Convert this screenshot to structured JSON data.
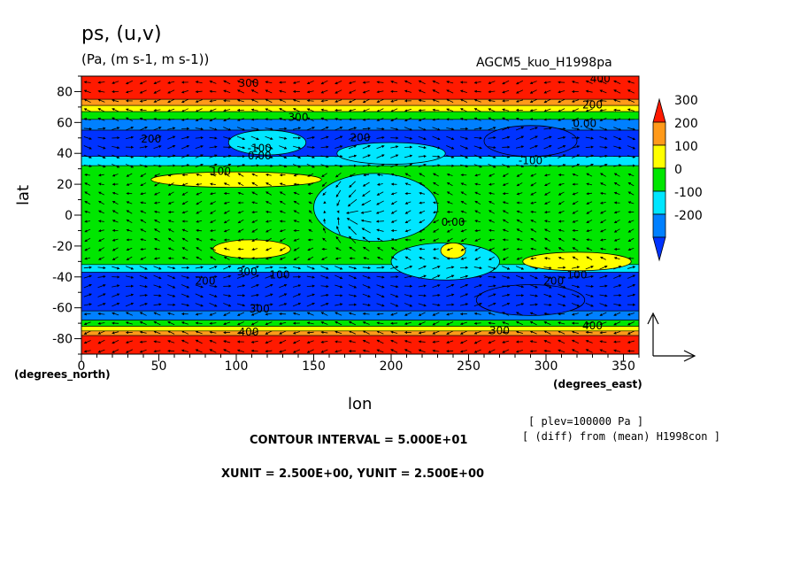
{
  "header": {
    "title": "ps, (u,v)",
    "units": "(Pa, (m s-1, m s-1))",
    "experiment": "AGCM5_kuo_H1998pa"
  },
  "axes": {
    "ylabel": "lat",
    "xlabel": "lon",
    "lat_unit": "(degrees_north)",
    "lon_unit": "(degrees_east)"
  },
  "notes": {
    "plev": "[ plev=100000 Pa ]",
    "diff": "[ (diff) from (mean) H1998con ]",
    "contour_interval": "CONTOUR INTERVAL = 5.000E+01",
    "vector_units": "XUNIT = 2.500E+00, YUNIT = 2.500E+00"
  },
  "chart_data": {
    "type": "heatmap",
    "xlim": [
      0,
      360
    ],
    "ylim": [
      -90,
      90
    ],
    "x_ticks": [
      0,
      50,
      100,
      150,
      200,
      250,
      300,
      350
    ],
    "y_ticks": [
      80,
      60,
      40,
      20,
      0,
      -20,
      -40,
      -60,
      -80
    ],
    "colorbar": {
      "levels": [
        300,
        200,
        100,
        0,
        -100,
        -200
      ],
      "colors": [
        "#ff1a00",
        "#ff9a1a",
        "#ffff00",
        "#00e600",
        "#00e6ff",
        "#0080ff",
        "#0033ff"
      ]
    },
    "latitude_bands": [
      {
        "lat_from": 90,
        "lat_to": 75,
        "value": 350
      },
      {
        "lat_from": 75,
        "lat_to": 71,
        "value": 250
      },
      {
        "lat_from": 71,
        "lat_to": 67,
        "value": 150
      },
      {
        "lat_from": 67,
        "lat_to": 62,
        "value": 50
      },
      {
        "lat_from": 62,
        "lat_to": 55,
        "value": -150
      },
      {
        "lat_from": 55,
        "lat_to": 38,
        "value": -250
      },
      {
        "lat_from": 38,
        "lat_to": 32,
        "value": -50
      },
      {
        "lat_from": 32,
        "lat_to": -32,
        "value": 50
      },
      {
        "lat_from": -32,
        "lat_to": -37,
        "value": -50
      },
      {
        "lat_from": -37,
        "lat_to": -62,
        "value": -250
      },
      {
        "lat_from": -62,
        "lat_to": -68,
        "value": -150
      },
      {
        "lat_from": -68,
        "lat_to": -72,
        "value": 50
      },
      {
        "lat_from": -72,
        "lat_to": -75,
        "value": 150
      },
      {
        "lat_from": -75,
        "lat_to": -78,
        "value": 250
      },
      {
        "lat_from": -78,
        "lat_to": -90,
        "value": 350
      }
    ],
    "anomaly_patches": [
      {
        "lon": 200,
        "lat": 40,
        "rlon": 35,
        "rlat": 7,
        "value": -50
      },
      {
        "lon": 190,
        "lat": 5,
        "rlon": 40,
        "rlat": 22,
        "value": -50
      },
      {
        "lon": 235,
        "lat": -30,
        "rlon": 35,
        "rlat": 12,
        "value": -50
      },
      {
        "lon": 120,
        "lat": 47,
        "rlon": 25,
        "rlat": 8,
        "value": -50
      },
      {
        "lon": 100,
        "lat": 23,
        "rlon": 55,
        "rlat": 5,
        "value": 150
      },
      {
        "lon": 110,
        "lat": -22,
        "rlon": 25,
        "rlat": 6,
        "value": 150
      },
      {
        "lon": 240,
        "lat": -23,
        "rlon": 8,
        "rlat": 5,
        "value": 150
      },
      {
        "lon": 320,
        "lat": -30,
        "rlon": 35,
        "rlat": 6,
        "value": 150
      },
      {
        "lon": 290,
        "lat": 48,
        "rlon": 30,
        "rlat": 10,
        "value": -250
      },
      {
        "lon": 290,
        "lat": -55,
        "rlon": 35,
        "rlat": 10,
        "value": -250
      }
    ],
    "contour_labels": [
      {
        "text": "300",
        "lon": 108,
        "lat": 83
      },
      {
        "text": "400",
        "lon": 335,
        "lat": 86
      },
      {
        "text": "200",
        "lon": 330,
        "lat": 69
      },
      {
        "text": "0.00",
        "lon": 325,
        "lat": 57
      },
      {
        "text": "300",
        "lon": 140,
        "lat": 61
      },
      {
        "text": "200",
        "lon": 45,
        "lat": 47
      },
      {
        "text": "200",
        "lon": 180,
        "lat": 48
      },
      {
        "text": "-100",
        "lon": 115,
        "lat": 41
      },
      {
        "text": "0.00",
        "lon": 115,
        "lat": 36
      },
      {
        "text": "100",
        "lon": 90,
        "lat": 26
      },
      {
        "text": "-100",
        "lon": 290,
        "lat": 33
      },
      {
        "text": "0.00",
        "lon": 240,
        "lat": -7
      },
      {
        "text": "200",
        "lon": 80,
        "lat": -45
      },
      {
        "text": "300",
        "lon": 107,
        "lat": -39
      },
      {
        "text": "100",
        "lon": 128,
        "lat": -41
      },
      {
        "text": "100",
        "lon": 320,
        "lat": -41
      },
      {
        "text": "200",
        "lon": 305,
        "lat": -45
      },
      {
        "text": "300",
        "lon": 115,
        "lat": -63
      },
      {
        "text": "400",
        "lon": 108,
        "lat": -78
      },
      {
        "text": "300",
        "lon": 270,
        "lat": -77
      },
      {
        "text": "400",
        "lon": 330,
        "lat": -74
      }
    ]
  }
}
